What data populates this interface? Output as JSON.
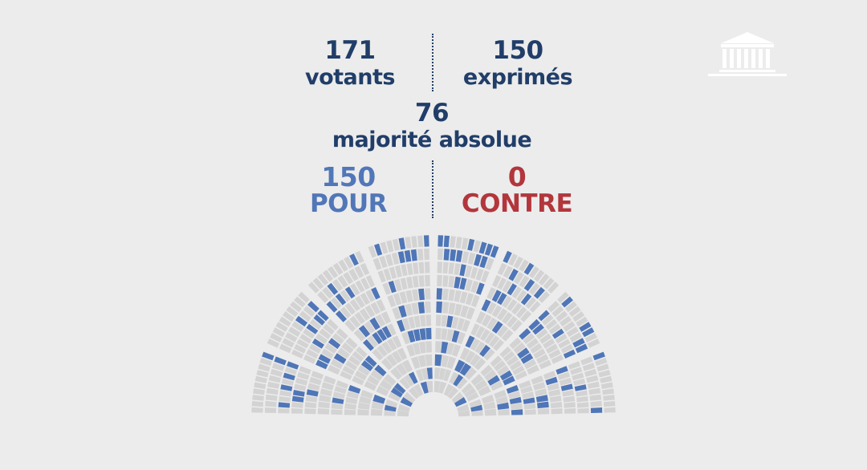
{
  "logo": {
    "icon": "assemblee-building-icon",
    "color": "#ffffff"
  },
  "stats": {
    "votants": {
      "value": "171",
      "label": "votants"
    },
    "exprimes": {
      "value": "150",
      "label": "exprimés"
    },
    "majorite": {
      "value": "76",
      "label": "majorité absolue"
    },
    "pour": {
      "value": "150",
      "label": "POUR"
    },
    "contre": {
      "value": "0",
      "label": "CONTRE"
    }
  },
  "colors": {
    "text": "#213e69",
    "pour": "#5177b8",
    "contre": "#b2363c",
    "seat_empty": "#d3d3d3",
    "seat_pour": "#4f76b7",
    "background": "#ececec"
  }
}
